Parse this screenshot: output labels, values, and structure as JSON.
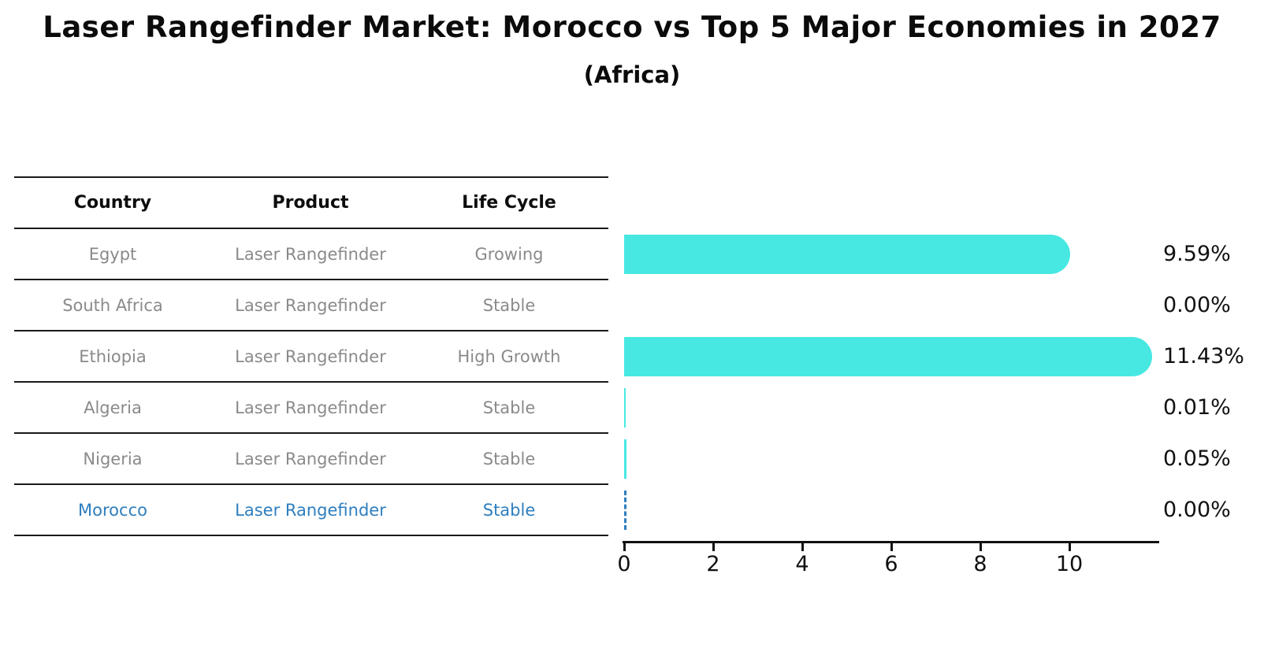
{
  "title": "Laser Rangefinder Market: Morocco vs Top 5 Major Economies in 2027",
  "subtitle": "(Africa)",
  "table": {
    "columns": [
      "Country",
      "Product",
      "Life Cycle"
    ],
    "rows": [
      {
        "country": "Egypt",
        "product": "Laser Rangefinder",
        "life_cycle": "Growing"
      },
      {
        "country": "South Africa",
        "product": "Laser Rangefinder",
        "life_cycle": "Stable"
      },
      {
        "country": "Ethiopia",
        "product": "Laser Rangefinder",
        "life_cycle": "High Growth"
      },
      {
        "country": "Algeria",
        "product": "Laser Rangefinder",
        "life_cycle": "Stable"
      },
      {
        "country": "Nigeria",
        "product": "Laser Rangefinder",
        "life_cycle": "Stable"
      },
      {
        "country": "Morocco",
        "product": "Laser Rangefinder",
        "life_cycle": "Stable"
      }
    ]
  },
  "chart_data": {
    "type": "bar",
    "orientation": "horizontal",
    "title": "Laser Rangefinder Market: Morocco vs Top 5 Major Economies in 2027 (Africa)",
    "categories": [
      "Egypt",
      "South Africa",
      "Ethiopia",
      "Algeria",
      "Nigeria",
      "Morocco"
    ],
    "values": [
      9.59,
      0.0,
      11.43,
      0.01,
      0.05,
      0.0
    ],
    "value_labels": [
      "9.59%",
      "0.00%",
      "11.43%",
      "0.01%",
      "0.05%",
      "0.00%"
    ],
    "x_ticks": [
      0,
      2,
      4,
      6,
      8,
      10
    ],
    "xlim": [
      0,
      12
    ],
    "grid": false,
    "legend": false,
    "highlight_index": 5,
    "highlight_style": "dashed-outline-bar",
    "bar_color": "#47E8E2",
    "highlight_color": "#2E7EBE"
  }
}
